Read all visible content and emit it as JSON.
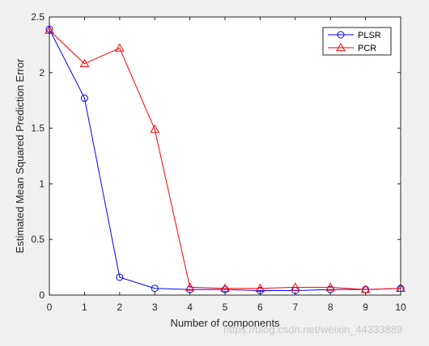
{
  "chart_data": {
    "type": "line",
    "xlabel": "Number of components",
    "ylabel": "Estimated Mean Squared Prediction Error",
    "xlim": [
      0,
      10
    ],
    "ylim": [
      0,
      2.5
    ],
    "xticks": [
      "0",
      "1",
      "2",
      "3",
      "4",
      "5",
      "6",
      "7",
      "8",
      "9",
      "10"
    ],
    "yticks": [
      "0",
      "0.5",
      "1",
      "1.5",
      "2",
      "2.5"
    ],
    "grid": false,
    "legend_position": "top-right",
    "series": [
      {
        "name": "PLSR",
        "color": "#0000ff",
        "marker": "circle",
        "x": [
          0,
          1,
          2,
          3,
          4,
          5,
          6,
          7,
          8,
          9,
          10
        ],
        "values": [
          2.39,
          1.77,
          0.16,
          0.06,
          0.05,
          0.05,
          0.04,
          0.04,
          0.05,
          0.05,
          0.06
        ]
      },
      {
        "name": "PCR",
        "color": "#ff0000",
        "marker": "triangle",
        "x": [
          0,
          1,
          2,
          3,
          4,
          5,
          6,
          7,
          8,
          9,
          10
        ],
        "values": [
          2.38,
          2.08,
          2.22,
          1.49,
          0.07,
          0.06,
          0.06,
          0.07,
          0.07,
          0.05,
          0.06
        ]
      }
    ]
  },
  "watermark": "https://blog.csdn.net/weixin_44333889"
}
